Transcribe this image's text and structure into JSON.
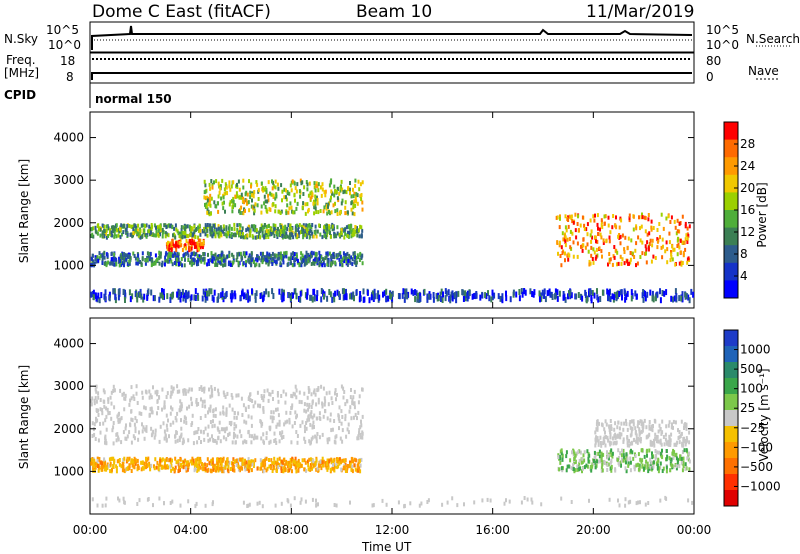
{
  "header": {
    "station": "Dome C East (fitACF)",
    "beam": "Beam 10",
    "date": "11/Mar/2019"
  },
  "strip_panels": {
    "nsky_label": "N.Sky",
    "nsky_ticks": [
      "10^5",
      "10^0"
    ],
    "nsearch_label": "N.Search",
    "nsearch_ticks": [
      "10^5",
      "10^0"
    ],
    "freq_label": "Freq.",
    "freq_unit": "[MHz]",
    "freq_ticks": [
      "18",
      "8"
    ],
    "nave_label": "Nave",
    "nave_ticks": [
      "80",
      "0"
    ],
    "cpid_label": "CPID",
    "cpid_value": "normal 150"
  },
  "power_colorbar": {
    "label": "Power [dB]",
    "ticks": [
      "28",
      "24",
      "20",
      "16",
      "12",
      "8",
      "4"
    ],
    "colors": [
      "#ff0000",
      "#ff6a00",
      "#ff9a00",
      "#f0c800",
      "#9bd000",
      "#4fae3a",
      "#3b7f54",
      "#2d5c8c",
      "#1533c8",
      "#0000ff"
    ]
  },
  "velocity_colorbar": {
    "label": "Velocity [m s⁻¹]",
    "ticks": [
      "1000",
      "500",
      "100",
      "25",
      "−25",
      "−100",
      "−500",
      "−1000"
    ],
    "colors": [
      "#1e3cc8",
      "#1f63b8",
      "#2a8a6a",
      "#3aa64a",
      "#7cc84a",
      "#c8c8c8",
      "#f5c000",
      "#ff9a00",
      "#ff7000",
      "#ff3000",
      "#e00000"
    ]
  },
  "chart_data": [
    {
      "type": "heatmap",
      "quantity": "Power",
      "xlabel": "",
      "ylabel": "Slant Range [km]",
      "xlim": [
        "00:00",
        "24:00"
      ],
      "ylim": [
        0,
        4600
      ],
      "yticks": [
        1000,
        2000,
        3000,
        4000
      ],
      "zlim_dB": [
        0,
        30
      ],
      "echo_regions": [
        {
          "t_start_h": 0.0,
          "t_end_h": 10.8,
          "range_km": [
            1000,
            1300
          ],
          "level_dB": 8
        },
        {
          "t_start_h": 0.0,
          "t_end_h": 10.8,
          "range_km": [
            1650,
            1950
          ],
          "level_dB": 12
        },
        {
          "t_start_h": 4.5,
          "t_end_h": 10.8,
          "range_km": [
            2200,
            3000
          ],
          "level_dB": 16
        },
        {
          "t_start_h": 3.0,
          "t_end_h": 4.5,
          "range_km": [
            1350,
            1600
          ],
          "level_dB": 26
        },
        {
          "t_start_h": 18.5,
          "t_end_h": 23.8,
          "range_km": [
            1000,
            2200
          ],
          "level_dB": 24
        },
        {
          "t_start_h": 0.0,
          "t_end_h": 24.0,
          "range_km": [
            180,
            400
          ],
          "level_dB": 4
        }
      ]
    },
    {
      "type": "heatmap",
      "quantity": "Velocity",
      "xlabel": "Time UT",
      "ylabel": "Slant Range [km]",
      "xlim": [
        "00:00",
        "24:00"
      ],
      "xticks": [
        "00:00",
        "04:00",
        "08:00",
        "12:00",
        "16:00",
        "20:00",
        "00:00"
      ],
      "ylim": [
        0,
        4600
      ],
      "yticks": [
        1000,
        2000,
        3000,
        4000
      ],
      "zlim_ms": [
        -1000,
        1000
      ],
      "echo_regions": [
        {
          "t_start_h": 0.0,
          "t_end_h": 10.8,
          "range_km": [
            1000,
            1300
          ],
          "velocity_ms": -300
        },
        {
          "t_start_h": 0.0,
          "t_end_h": 10.8,
          "range_km": [
            1650,
            3000
          ],
          "velocity_ms": 0
        },
        {
          "t_start_h": 18.5,
          "t_end_h": 23.8,
          "range_km": [
            1000,
            1500
          ],
          "velocity_ms": 200
        },
        {
          "t_start_h": 20.0,
          "t_end_h": 23.8,
          "range_km": [
            1600,
            2200
          ],
          "velocity_ms": 0
        }
      ]
    }
  ]
}
